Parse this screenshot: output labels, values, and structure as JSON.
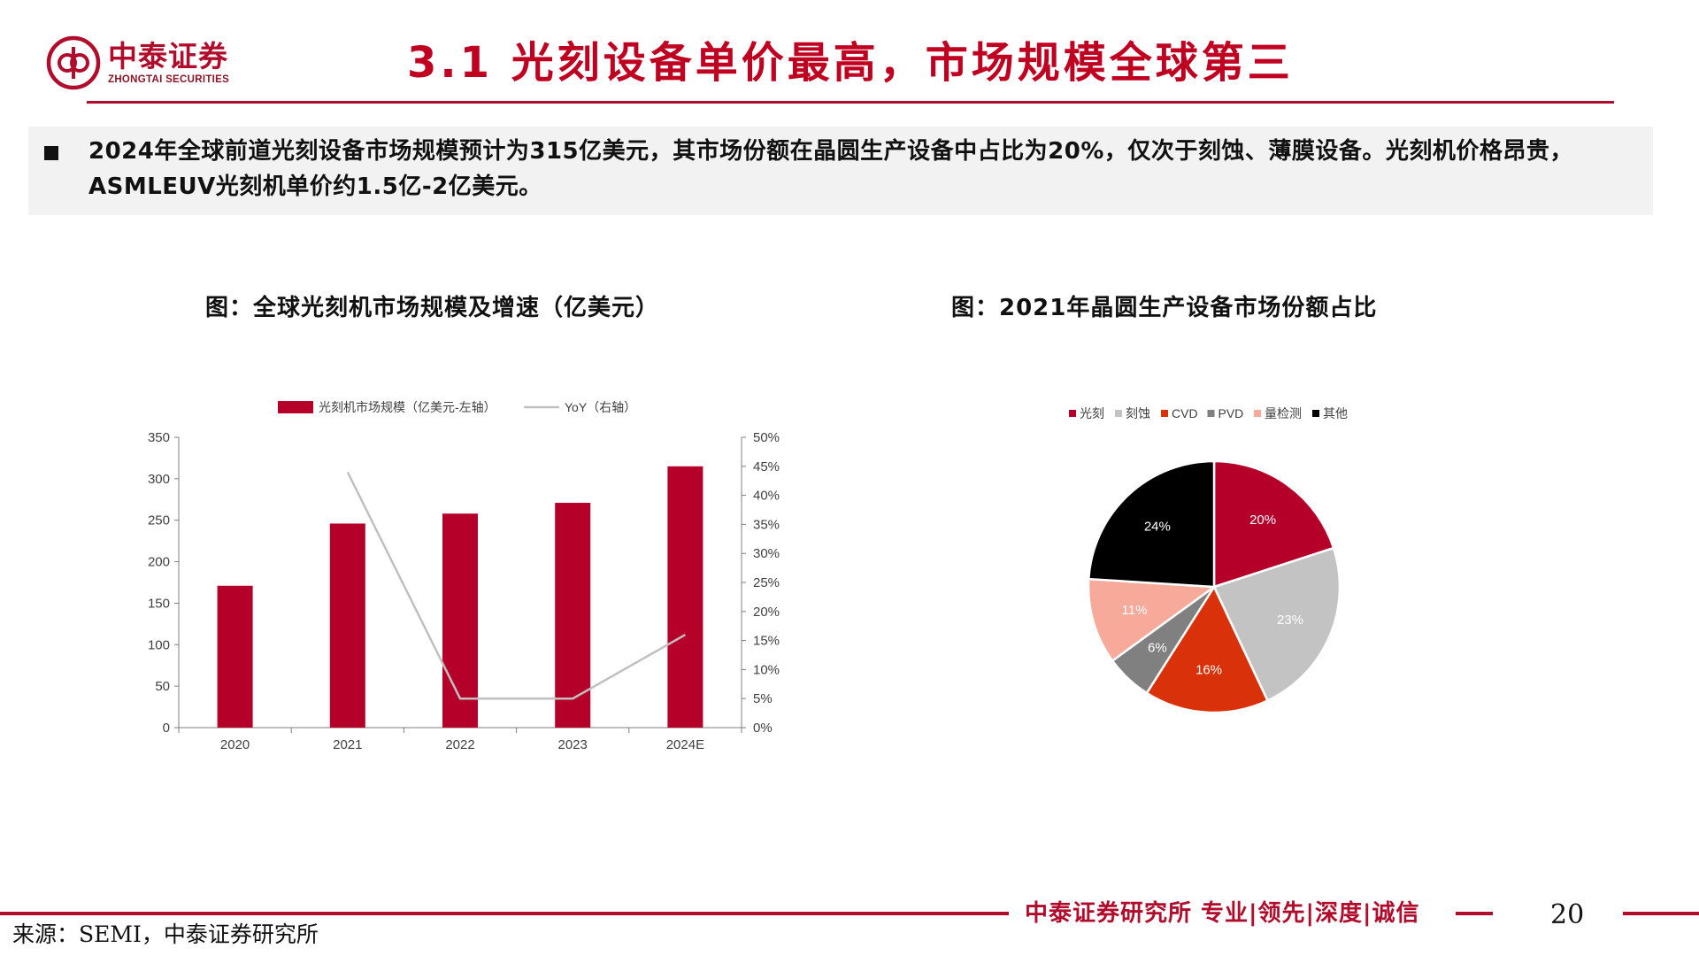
{
  "header": {
    "logo_cn": "中泰证券",
    "logo_en": "ZHONGTAI SECURITIES",
    "title": "3.1 光刻设备单价最高，市场规模全球第三"
  },
  "summary": {
    "text": "2024年全球前道光刻设备市场规模预计为315亿美元，其市场份额在晶圆生产设备中占比为20%，仅次于刻蚀、薄膜设备。光刻机价格昂贵，ASMLEUV光刻机单价约1.5亿-2亿美元。"
  },
  "captions": {
    "left": "图：全球光刻机市场规模及增速（亿美元）",
    "right": "图：2021年晶圆生产设备市场份额占比"
  },
  "colors": {
    "brand": "#b10c2b",
    "bar": "#b5002a",
    "line": "#c0c0c0"
  },
  "chart_data": [
    {
      "type": "bar",
      "categories": [
        "2020",
        "2021",
        "2022",
        "2023",
        "2024E"
      ],
      "series": [
        {
          "name": "光刻机市场规模（亿美元-左轴）",
          "type": "bar",
          "axis": "left",
          "values": [
            171,
            246,
            258,
            271,
            315
          ]
        },
        {
          "name": "YoY（右轴）",
          "type": "line",
          "axis": "right",
          "values": [
            null,
            0.44,
            0.05,
            0.05,
            0.16
          ]
        }
      ],
      "y_left": {
        "min": 0,
        "max": 350,
        "ticks": [
          "0",
          "50",
          "100",
          "150",
          "200",
          "250",
          "300",
          "350"
        ]
      },
      "y_right": {
        "min": 0,
        "max": 0.5,
        "ticks": [
          "0%",
          "5%",
          "10%",
          "15%",
          "20%",
          "25%",
          "30%",
          "35%",
          "40%",
          "45%",
          "50%"
        ]
      },
      "legend": "top",
      "grid": false
    },
    {
      "type": "pie",
      "labels": [
        "光刻",
        "刻蚀",
        "CVD",
        "PVD",
        "量检测",
        "其他"
      ],
      "values": [
        20,
        23,
        16,
        6,
        11,
        24
      ],
      "value_labels": [
        "20%",
        "23%",
        "16%",
        "6%",
        "11%",
        "24%"
      ],
      "colors": [
        "#b5002a",
        "#c3c3c3",
        "#d9310a",
        "#808080",
        "#f7a99a",
        "#000000"
      ],
      "legend": "top"
    }
  ],
  "footer": {
    "brand": "中泰证券研究所 专业|领先|深度|诚信",
    "page_number": "20",
    "source": "来源：SEMI，中泰证券研究所"
  }
}
